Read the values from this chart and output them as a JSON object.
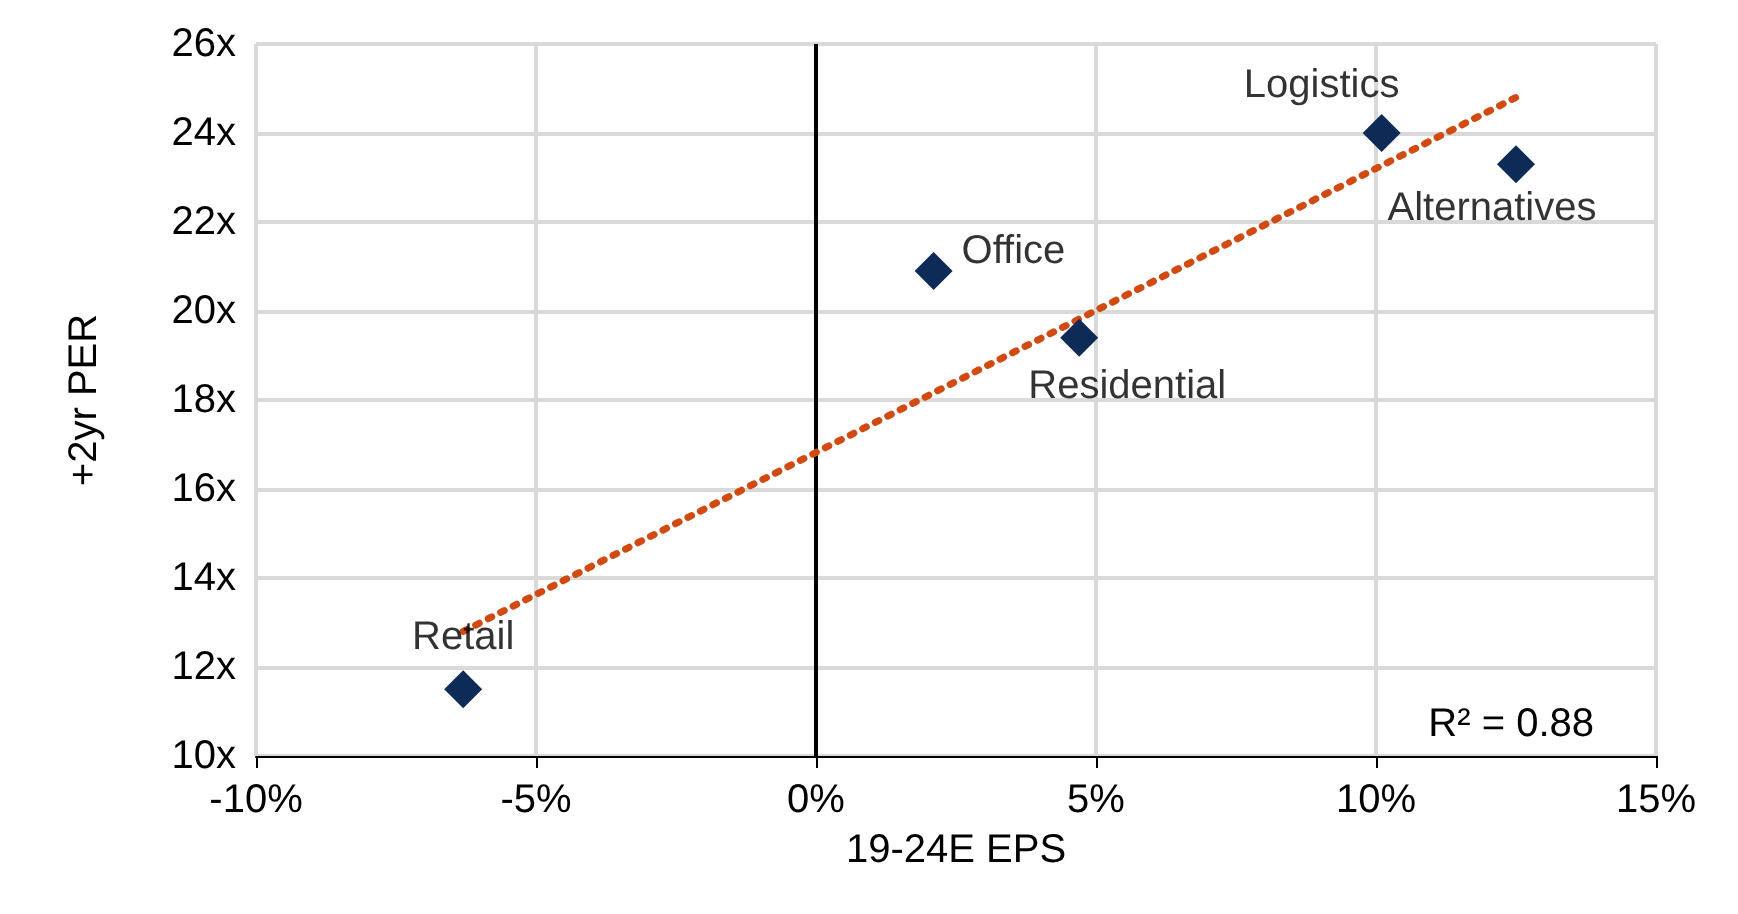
{
  "chart_data": {
    "type": "scatter",
    "xlabel": "19-24E EPS",
    "ylabel": "+2yr PER",
    "x": [
      -6.3,
      2.1,
      4.7,
      10.1,
      12.5
    ],
    "series": [
      {
        "color": "#0e2a56",
        "values": [
          11.5,
          20.9,
          19.4,
          24.0,
          23.3
        ],
        "marker": "diamond"
      },
      {
        "type": "line",
        "color": "#d04a12",
        "x": [
          -6.3,
          12.5
        ],
        "values": [
          12.8,
          24.8
        ],
        "marker": "none",
        "line_style": "dotted"
      }
    ],
    "annotations": [
      {
        "text": "Retail",
        "x": -6.3,
        "y": 11.5
      },
      {
        "text": "Office",
        "x": 2.1,
        "y": 20.9
      },
      {
        "text": "Residential",
        "x": 4.7,
        "y": 19.4
      },
      {
        "text": "Logistics",
        "x": 10.1,
        "y": 24.0
      },
      {
        "text": "Alternatives",
        "x": 12.5,
        "y": 23.3
      },
      "R² = 0.88"
    ],
    "xlim": [
      -10,
      15
    ],
    "xticks": [
      {
        "value": -10,
        "label": "-10%"
      },
      {
        "value": -5,
        "label": "-5%"
      },
      {
        "value": 0,
        "label": "0%"
      },
      {
        "value": 5,
        "label": "5%"
      },
      {
        "value": 10,
        "label": "10%"
      },
      {
        "value": 15,
        "label": "15%"
      }
    ],
    "ylim": [
      10,
      26
    ],
    "yticks": [
      {
        "value": 10,
        "label": "10x"
      },
      {
        "value": 12,
        "label": "12x"
      },
      {
        "value": 14,
        "label": "14x"
      },
      {
        "value": 16,
        "label": "16x"
      },
      {
        "value": 18,
        "label": "18x"
      },
      {
        "value": 20,
        "label": "20x"
      },
      {
        "value": 22,
        "label": "22x"
      },
      {
        "value": 24,
        "label": "24x"
      },
      {
        "value": 26,
        "label": "26x"
      }
    ],
    "grid": true
  }
}
